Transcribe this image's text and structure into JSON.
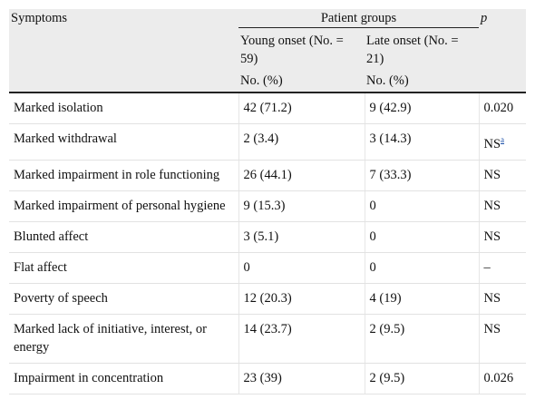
{
  "table": {
    "header": {
      "symptoms": "Symptoms",
      "patient_groups": "Patient groups",
      "p": "p",
      "young_onset": "Young onset (No. = 59)",
      "late_onset": "Late onset (No. = 21)",
      "young_unit": "No. (%)",
      "late_unit": "No. (%)"
    },
    "rows": [
      {
        "symptom": "Marked isolation",
        "young": "42 (71.2)",
        "late": "9 (42.9)",
        "p": "0.020",
        "footnote": ""
      },
      {
        "symptom": "Marked withdrawal",
        "young": "2 (3.4)",
        "late": "3 (14.3)",
        "p": "NS",
        "footnote": "a"
      },
      {
        "symptom": "Marked impairment in role functioning",
        "young": "26 (44.1)",
        "late": "7 (33.3)",
        "p": "NS",
        "footnote": ""
      },
      {
        "symptom": "Marked impairment of personal hygiene",
        "young": "9 (15.3)",
        "late": "0",
        "p": "NS",
        "footnote": ""
      },
      {
        "symptom": "Blunted affect",
        "young": "3 (5.1)",
        "late": "0",
        "p": "NS",
        "footnote": ""
      },
      {
        "symptom": "Flat affect",
        "young": "0",
        "late": "0",
        "p": "–",
        "footnote": ""
      },
      {
        "symptom": "Poverty of speech",
        "young": "12 (20.3)",
        "late": "4 (19)",
        "p": "NS",
        "footnote": ""
      },
      {
        "symptom": "Marked lack of initiative, interest, or energy",
        "young": "14 (23.7)",
        "late": "2 (9.5)",
        "p": "NS",
        "footnote": ""
      },
      {
        "symptom": "Impairment in concentration",
        "young": "23 (39)",
        "late": "2 (9.5)",
        "p": "0.026",
        "footnote": ""
      }
    ]
  }
}
